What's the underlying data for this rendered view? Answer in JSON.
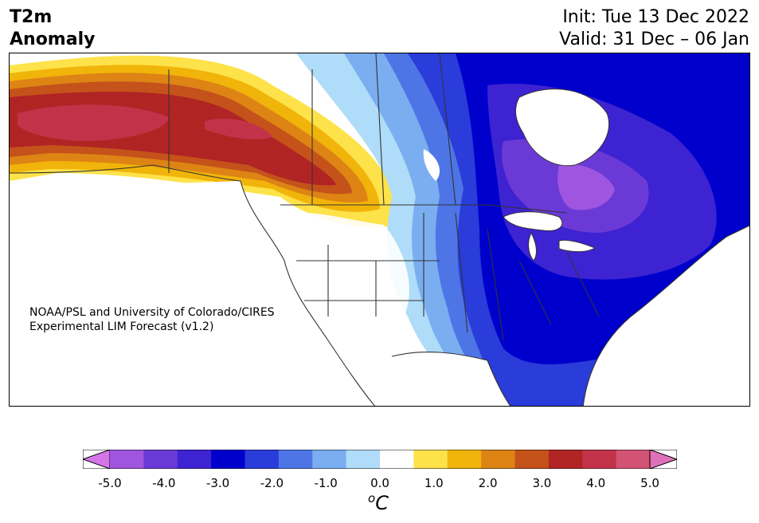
{
  "header": {
    "title_line1": "T2m",
    "title_line2": "Anomaly",
    "init": "Init: Tue 13 Dec 2022",
    "valid": "Valid: 31 Dec – 06 Jan"
  },
  "credit": {
    "line1": "NOAA/PSL and University of Colorado/CIRES",
    "line2": "Experimental LIM Forecast (v1.2)"
  },
  "colorbar": {
    "colors": [
      "#d675e8",
      "#9f55e0",
      "#6b3ad6",
      "#3d23d2",
      "#0000cc",
      "#2a3cd9",
      "#4e75e6",
      "#7aaef0",
      "#afdcf8",
      "#ffffff",
      "#fde24a",
      "#f1b40a",
      "#dd8415",
      "#c4521a",
      "#b02424",
      "#c23349",
      "#d35375",
      "#e071b8"
    ],
    "tick_labels": [
      "-5.0",
      "-4.0",
      "-3.0",
      "-2.0",
      "-1.0",
      "0.0",
      "1.0",
      "2.0",
      "3.0",
      "4.0",
      "5.0"
    ],
    "unit_base": "C",
    "unit_sup": "o"
  }
}
